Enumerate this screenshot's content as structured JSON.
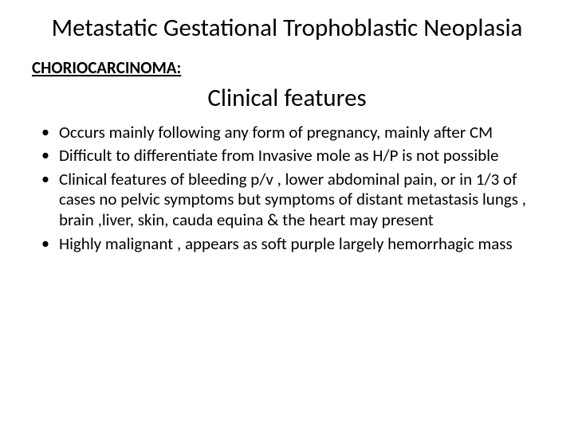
{
  "slide": {
    "title": "Metastatic Gestational Trophoblastic Neoplasia",
    "section_label": "CHORIOCARCINOMA:",
    "subtitle": "Clinical features",
    "bullets": [
      "Occurs mainly following any form of pregnancy, mainly after CM",
      "Difficult to differentiate from Invasive mole as H/P is not possible",
      "Clinical features of  bleeding p/v ,  lower abdominal pain, or in 1/3 of cases no pelvic symptoms but symptoms of distant metastasis lungs , brain ,liver, skin,  cauda equina & the heart may present",
      "Highly malignant , appears as soft purple largely hemorrhagic mass"
    ]
  },
  "style": {
    "background_color": "#ffffff",
    "text_color": "#000000",
    "title_fontsize": 31,
    "subtitle_fontsize": 31,
    "section_label_fontsize": 21,
    "bullet_fontsize": 21,
    "font_family": "Calibri"
  }
}
